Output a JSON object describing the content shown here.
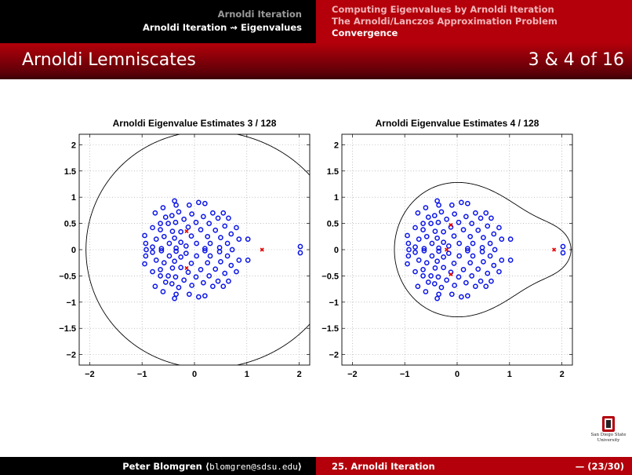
{
  "header": {
    "section": "Arnoldi Iteration",
    "subsection": "Arnoldi Iteration ⇝ Eigenvalues",
    "nav": [
      "Computing Eigenvalues by Arnoldi Iteration",
      "The Arnoldi/Lanczos Approximation Problem",
      "Convergence"
    ]
  },
  "frame": {
    "title": "Arnoldi Lemniscates",
    "count": "3 & 4 of 16"
  },
  "footer": {
    "author": "Peter Blomgren",
    "email": "blomgren@sdsu.edu",
    "talk": "25. Arnoldi Iteration",
    "pages": "— (23/30)"
  },
  "logo": {
    "text_line1": "San Diego State",
    "text_line2": "University"
  },
  "colors": {
    "eigen": "#0a14e6",
    "ritz": "#e60000",
    "red": "#b3000a"
  },
  "chart_data": [
    {
      "type": "scatter",
      "title": "Arnoldi Eigenvalue Estimates 3 / 128",
      "xlim": [
        -2.2,
        2.2
      ],
      "ylim": [
        -2.2,
        2.2
      ],
      "xticks": [
        -2,
        -1,
        0,
        1,
        2
      ],
      "xticklabels": [
        "−2",
        "−1",
        "0",
        "1",
        "2"
      ],
      "yticks": [
        2,
        1.5,
        1,
        0.5,
        0,
        -0.5,
        -1,
        -1.5,
        -2
      ],
      "yticklabels": [
        "2",
        "1.5",
        "1",
        "0.5",
        "0",
        "−0.5",
        "−1",
        "−1.5",
        "−2"
      ],
      "grid": true,
      "ritz_values": [
        [
          1.29,
          0.0
        ],
        [
          -0.15,
          0.35
        ],
        [
          -0.15,
          -0.35
        ]
      ],
      "lemniscate": {
        "roots": [
          [
            1.29,
            0.0
          ],
          [
            -0.15,
            0.35
          ],
          [
            -0.15,
            -0.35
          ]
        ],
        "level": 12.8
      }
    },
    {
      "type": "scatter",
      "title": "Arnoldi Eigenvalue Estimates 4 / 128",
      "xlim": [
        -2.2,
        2.2
      ],
      "ylim": [
        -2.2,
        2.2
      ],
      "xticks": [
        -2,
        -1,
        0,
        1,
        2
      ],
      "xticklabels": [
        "−2",
        "−1",
        "0",
        "1",
        "2"
      ],
      "yticks": [
        2,
        1.5,
        1,
        0.5,
        0,
        -0.5,
        -1,
        -1.5,
        -2
      ],
      "yticklabels": [
        "2",
        "1.5",
        "1",
        "0.5",
        "0",
        "−0.5",
        "−1",
        "−1.5",
        "−2"
      ],
      "grid": true,
      "ritz_values": [
        [
          1.85,
          0.0
        ],
        [
          -0.2,
          0.0
        ],
        [
          -0.12,
          0.47
        ],
        [
          -0.12,
          -0.47
        ]
      ],
      "lemniscate": {
        "roots": [
          [
            1.85,
            0.0
          ],
          [
            -0.2,
            0.0
          ],
          [
            -0.12,
            0.47
          ],
          [
            -0.12,
            -0.47
          ]
        ],
        "level": 4.2
      }
    }
  ],
  "eigenvalues": [
    [
      2.02,
      0.06
    ],
    [
      2.02,
      -0.06
    ],
    [
      1.02,
      0.2
    ],
    [
      1.02,
      -0.2
    ],
    [
      -0.95,
      0.27
    ],
    [
      -0.95,
      -0.27
    ],
    [
      -0.93,
      0.12
    ],
    [
      -0.93,
      -0.12
    ],
    [
      -0.92,
      0.0
    ],
    [
      -0.8,
      0.05
    ],
    [
      -0.8,
      -0.05
    ],
    [
      -0.8,
      0.42
    ],
    [
      -0.8,
      -0.42
    ],
    [
      -0.75,
      0.7
    ],
    [
      -0.75,
      -0.7
    ],
    [
      -0.73,
      0.2
    ],
    [
      -0.73,
      -0.2
    ],
    [
      -0.65,
      0.5
    ],
    [
      -0.65,
      -0.5
    ],
    [
      -0.65,
      0.38
    ],
    [
      -0.65,
      -0.38
    ],
    [
      -0.63,
      0.02
    ],
    [
      -0.63,
      -0.02
    ],
    [
      -0.6,
      0.8
    ],
    [
      -0.6,
      -0.8
    ],
    [
      -0.58,
      0.25
    ],
    [
      -0.58,
      -0.25
    ],
    [
      -0.55,
      0.62
    ],
    [
      -0.55,
      -0.62
    ],
    [
      -0.5,
      0.5
    ],
    [
      -0.5,
      -0.5
    ],
    [
      -0.48,
      0.12
    ],
    [
      -0.48,
      -0.12
    ],
    [
      -0.43,
      0.65
    ],
    [
      -0.43,
      -0.65
    ],
    [
      -0.42,
      0.35
    ],
    [
      -0.42,
      -0.35
    ],
    [
      -0.38,
      0.22
    ],
    [
      -0.38,
      -0.22
    ],
    [
      -0.36,
      0.52
    ],
    [
      -0.36,
      -0.52
    ],
    [
      -0.35,
      0.03
    ],
    [
      -0.35,
      -0.03
    ],
    [
      -0.35,
      0.85
    ],
    [
      -0.35,
      -0.85
    ],
    [
      -0.38,
      0.93
    ],
    [
      -0.38,
      -0.93
    ],
    [
      -0.3,
      0.72
    ],
    [
      -0.3,
      -0.72
    ],
    [
      -0.26,
      0.34
    ],
    [
      -0.26,
      -0.34
    ],
    [
      -0.26,
      0.14
    ],
    [
      -0.26,
      -0.14
    ],
    [
      -0.2,
      0.58
    ],
    [
      -0.2,
      -0.58
    ],
    [
      -0.16,
      0.07
    ],
    [
      -0.16,
      -0.07
    ],
    [
      -0.12,
      0.43
    ],
    [
      -0.12,
      -0.43
    ],
    [
      -0.1,
      0.85
    ],
    [
      -0.1,
      -0.85
    ],
    [
      -0.06,
      0.26
    ],
    [
      -0.06,
      -0.26
    ],
    [
      -0.05,
      0.68
    ],
    [
      -0.05,
      -0.68
    ],
    [
      0.03,
      0.52
    ],
    [
      0.03,
      -0.52
    ],
    [
      0.04,
      0.12
    ],
    [
      0.04,
      -0.12
    ],
    [
      0.08,
      0.9
    ],
    [
      0.08,
      -0.9
    ],
    [
      0.12,
      0.38
    ],
    [
      0.12,
      -0.38
    ],
    [
      0.17,
      0.63
    ],
    [
      0.17,
      -0.63
    ],
    [
      0.2,
      0.02
    ],
    [
      0.2,
      -0.02
    ],
    [
      0.2,
      0.88
    ],
    [
      0.2,
      -0.88
    ],
    [
      0.25,
      0.25
    ],
    [
      0.25,
      -0.25
    ],
    [
      0.28,
      0.5
    ],
    [
      0.28,
      -0.5
    ],
    [
      0.3,
      0.12
    ],
    [
      0.3,
      -0.12
    ],
    [
      0.35,
      0.7
    ],
    [
      0.35,
      -0.7
    ],
    [
      0.4,
      0.37
    ],
    [
      0.4,
      -0.37
    ],
    [
      0.45,
      0.6
    ],
    [
      0.45,
      -0.6
    ],
    [
      0.48,
      0.04
    ],
    [
      0.48,
      -0.04
    ],
    [
      0.5,
      0.23
    ],
    [
      0.5,
      -0.23
    ],
    [
      0.55,
      0.7
    ],
    [
      0.55,
      -0.7
    ],
    [
      0.58,
      0.45
    ],
    [
      0.58,
      -0.45
    ],
    [
      0.63,
      0.12
    ],
    [
      0.63,
      -0.12
    ],
    [
      0.65,
      0.6
    ],
    [
      0.65,
      -0.6
    ],
    [
      0.7,
      0.3
    ],
    [
      0.7,
      -0.3
    ],
    [
      0.72,
      0.0
    ],
    [
      0.8,
      0.42
    ],
    [
      0.8,
      -0.42
    ],
    [
      0.85,
      0.2
    ],
    [
      0.85,
      -0.2
    ]
  ]
}
